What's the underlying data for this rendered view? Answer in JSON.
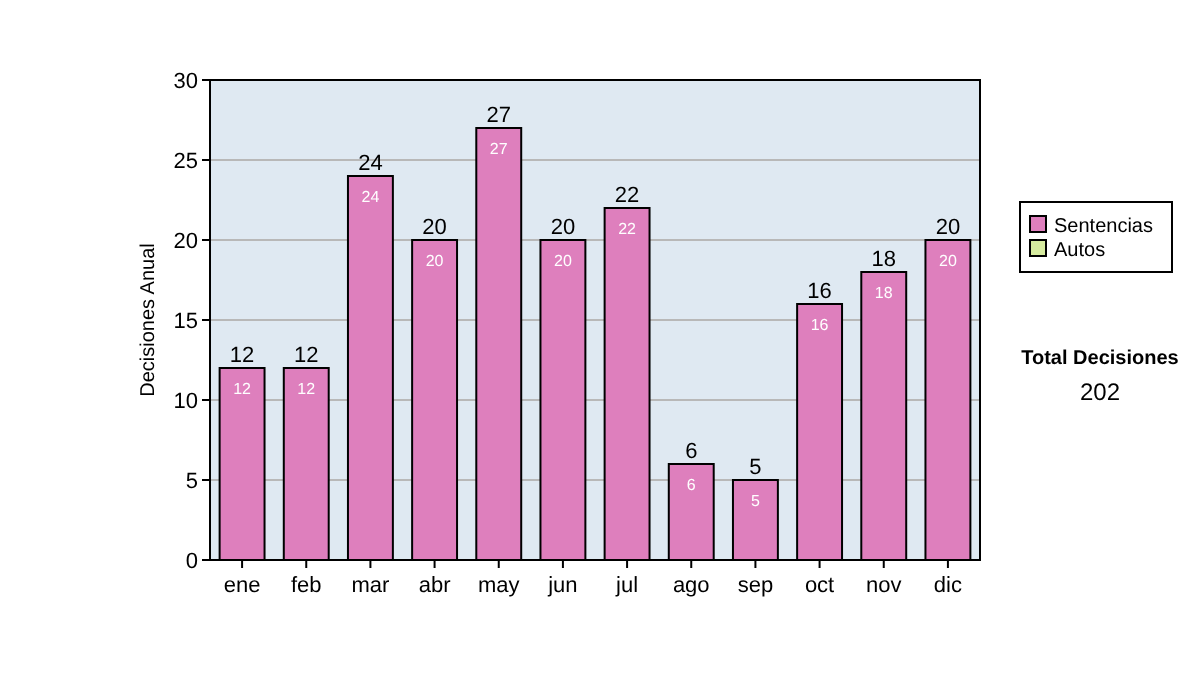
{
  "chart_data": {
    "type": "bar",
    "ylabel": "Decisiones Anual",
    "categories": [
      "ene",
      "feb",
      "mar",
      "abr",
      "may",
      "jun",
      "jul",
      "ago",
      "sep",
      "oct",
      "nov",
      "dic"
    ],
    "series": [
      {
        "name": "Sentencias",
        "color": "#de7fbd",
        "values": [
          12,
          12,
          24,
          20,
          27,
          20,
          22,
          6,
          5,
          16,
          18,
          20
        ],
        "value_labels": [
          "12",
          "12",
          "24",
          "20",
          "27",
          "20",
          "22",
          "6",
          "5",
          "16",
          "18",
          "20"
        ]
      },
      {
        "name": "Autos",
        "color": "#d6eb9f",
        "values": [
          0,
          0,
          0,
          0,
          0,
          0,
          0,
          0,
          0,
          0,
          0,
          0
        ],
        "value_labels": [
          null,
          null,
          null,
          null,
          null,
          null,
          null,
          null,
          null,
          null,
          null,
          null
        ]
      }
    ],
    "stacked": true,
    "totals": [
      "12",
      "12",
      "24",
      "20",
      "27",
      "20",
      "22",
      "6",
      "5",
      "16",
      "18",
      "20"
    ],
    "ylim": [
      0,
      30
    ],
    "yticks": [
      0,
      5,
      10,
      15,
      20,
      25,
      30
    ],
    "grid": "y",
    "legend": "right",
    "annotations": [
      "Total Decisiones",
      "202"
    ]
  }
}
